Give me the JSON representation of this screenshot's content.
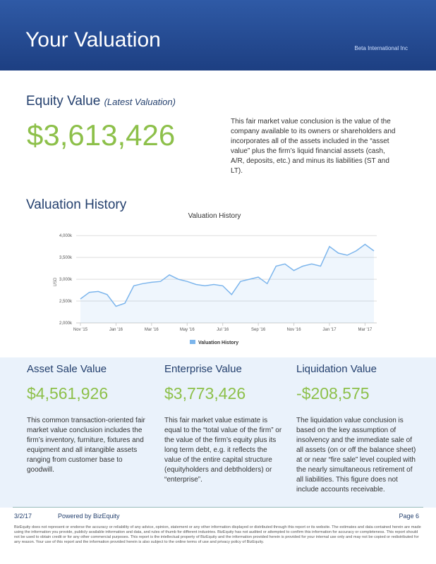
{
  "header": {
    "title": "Your Valuation",
    "company": "Beta International Inc"
  },
  "equity": {
    "title": "Equity Value",
    "subtitle": "(Latest Valuation)",
    "value": "$3,613,426",
    "description": "This fair market value conclusion is the value of the company available to its owners or shareholders and incorporates all of the assets included in the “asset value” plus the firm’s liquid financial assets (cash, A/R, deposits, etc.) and minus its liabilities (ST and LT)."
  },
  "history": {
    "title": "Valuation History"
  },
  "chart_data": {
    "type": "line",
    "title": "Valuation History",
    "y_label": "USD",
    "categories": [
      "Nov '15",
      null,
      null,
      null,
      "Jan '16",
      null,
      null,
      null,
      "Mar '16",
      null,
      null,
      null,
      "May '16",
      null,
      null,
      null,
      "Jul '16",
      null,
      null,
      null,
      "Sep '16",
      null,
      null,
      null,
      "Nov '16",
      null,
      null,
      null,
      "Jan '17",
      null,
      null,
      null,
      "Mar '17",
      null
    ],
    "series": [
      {
        "name": "Valuation History",
        "color": "#7cb5ec",
        "values": [
          2550000,
          2700000,
          2720000,
          2650000,
          2380000,
          2450000,
          2850000,
          2900000,
          2930000,
          2950000,
          3100000,
          3000000,
          2950000,
          2880000,
          2850000,
          2880000,
          2850000,
          2650000,
          2950000,
          3000000,
          3050000,
          2900000,
          3300000,
          3350000,
          3200000,
          3300000,
          3350000,
          3300000,
          3750000,
          3600000,
          3550000,
          3650000,
          3800000,
          3650000
        ]
      }
    ],
    "ylim": [
      2000000,
      4100000
    ],
    "yticks": [
      {
        "value": 2000000,
        "label": "2,000k"
      },
      {
        "value": 2500000,
        "label": "2,500k"
      },
      {
        "value": 3000000,
        "label": "3,000k"
      },
      {
        "value": 3500000,
        "label": "3,500k"
      },
      {
        "value": 4000000,
        "label": "4,000k"
      }
    ],
    "grid": true
  },
  "cards": [
    {
      "title": "Asset Sale Value",
      "value": "$4,561,926",
      "description": "This common transaction-oriented fair market value conclusion includes the firm’s inventory, furniture, fixtures and equipment and all intangible assets ranging from customer base to goodwill."
    },
    {
      "title": "Enterprise Value",
      "value": "$3,773,426",
      "description": "This fair market value estimate is equal to the “total value of the firm” or the value of the firm’s equity plus its long term debt, e.g. it reflects the value of the entire capital structure (equityholders and debtholders) or “enterprise”."
    },
    {
      "title": "Liquidation Value",
      "value": "-$208,575",
      "description": "The liquidation value conclusion is based on the key assumption of insolvency and the immediate sale of all assets (on or off the balance sheet) at or near “fire sale” level coupled with the nearly simultaneous retirement of all liabilities. This figure does not include accounts receivable."
    }
  ],
  "footer": {
    "date": "3/2/17",
    "powered": "Powered by BizEquity",
    "page": "Page 6",
    "disclaimer": "BizEquity does not represent or endorse the accuracy or reliability of any advice, opinion, statement or any other information displayed or distributed through this report or its website. The estimates and data contained herein are made using the information you provide, publicly available information and data, and rules of thumb for different industries. BizEquity has not audited or attempted to confirm this information for accuracy or completeness. This report should not be used to obtain credit or for any other commercial purposes. This report is the intellectual property of BizEquity and the information provided herein is provided for your internal use only and may not be copied or redistributed for any reason. Your use of this report and the information provided herein is also subject to the online terms of use and privacy policy of BizEquity."
  }
}
